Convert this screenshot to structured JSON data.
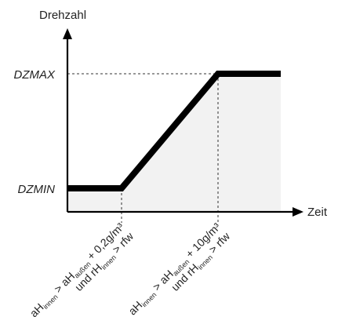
{
  "chart_data": {
    "type": "line",
    "ylabel": "Drehzahl",
    "xlabel": "Zeit",
    "y_tick_labels": [
      "DZMIN",
      "DZMAX"
    ],
    "x_tick_labels": [
      {
        "line1": [
          {
            "t": "aH",
            "sub": false
          },
          {
            "t": "innen",
            "sub": true
          },
          {
            "t": " > aH",
            "sub": false
          },
          {
            "t": "außen",
            "sub": true
          },
          {
            "t": " + 0,2g/m³",
            "sub": false
          }
        ],
        "line2": [
          {
            "t": "und rH",
            "sub": false
          },
          {
            "t": "innen",
            "sub": true
          },
          {
            "t": " > rfw",
            "sub": false
          }
        ]
      },
      {
        "line1": [
          {
            "t": "aH",
            "sub": false
          },
          {
            "t": "innen",
            "sub": true
          },
          {
            "t": " > aH",
            "sub": false
          },
          {
            "t": "außen",
            "sub": true
          },
          {
            "t": " + 10g/m³",
            "sub": false
          }
        ],
        "line2": [
          {
            "t": "und rH",
            "sub": false
          },
          {
            "t": "innen",
            "sub": true
          },
          {
            "t": " > rfw",
            "sub": false
          }
        ]
      }
    ],
    "series": [
      {
        "x": [
          0,
          1,
          2,
          3
        ],
        "y": [
          "DZMIN",
          "DZMIN",
          "DZMAX",
          "DZMAX"
        ]
      }
    ],
    "colors": {
      "line": "#000000",
      "fill": "#f2f2f2",
      "guide": "#333333"
    },
    "grid": false
  }
}
